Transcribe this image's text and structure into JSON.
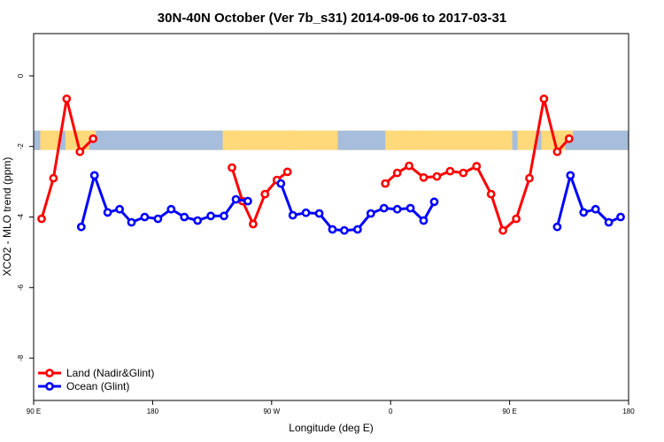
{
  "chart_data": {
    "type": "line",
    "title": "30N-40N October (Ver 7b_s31)   2014-09-06 to 2017-03-31",
    "xlabel": "Longitude (deg E)",
    "ylabel": "XCO2 - MLO trend (ppm)",
    "xlim": [
      90,
      540
    ],
    "ylim": [
      -9.2,
      1.2
    ],
    "x_ticks": [
      {
        "value": 90,
        "label": "90 E"
      },
      {
        "value": 180,
        "label": "180"
      },
      {
        "value": 270,
        "label": "90 W"
      },
      {
        "value": 360,
        "label": "0"
      },
      {
        "value": 450,
        "label": "90 E"
      },
      {
        "value": 540,
        "label": "180"
      }
    ],
    "y_ticks": [
      {
        "value": 0,
        "label": "0"
      },
      {
        "value": -2,
        "label": "-2"
      },
      {
        "value": -4,
        "label": "-4"
      },
      {
        "value": -6,
        "label": "-6"
      },
      {
        "value": -8,
        "label": "-8"
      }
    ],
    "land_mask_band": {
      "y_range": [
        -2.1,
        -1.55
      ],
      "land_color": "#FFD97A",
      "ocean_color": "#A6BDDB"
    },
    "series": [
      {
        "name": "Land (Nadir&Glint)",
        "color": "#FF0000",
        "segments": [
          [
            [
              96,
              -4.05
            ],
            [
              105,
              -2.9
            ],
            [
              115,
              -0.65
            ],
            [
              125,
              -2.15
            ],
            [
              135,
              -1.78
            ]
          ],
          [
            [
              240,
              -2.6
            ],
            [
              248,
              -3.55
            ],
            [
              256,
              -4.2
            ],
            [
              265,
              -3.35
            ],
            [
              274,
              -2.95
            ],
            [
              282,
              -2.72
            ]
          ],
          [
            [
              356,
              -3.05
            ],
            [
              365,
              -2.75
            ],
            [
              374,
              -2.55
            ],
            [
              385,
              -2.88
            ],
            [
              395,
              -2.85
            ],
            [
              405,
              -2.7
            ],
            [
              415,
              -2.75
            ],
            [
              425,
              -2.56
            ],
            [
              436,
              -3.35
            ],
            [
              445,
              -4.38
            ],
            [
              455,
              -4.05
            ],
            [
              465,
              -2.9
            ],
            [
              476,
              -0.65
            ],
            [
              486,
              -2.15
            ],
            [
              495,
              -1.78
            ]
          ]
        ]
      },
      {
        "name": "Ocean (Glint)",
        "color": "#0000FF",
        "segments": [
          [
            [
              126,
              -4.28
            ],
            [
              136,
              -2.82
            ],
            [
              146,
              -3.87
            ],
            [
              155,
              -3.78
            ],
            [
              164,
              -4.15
            ],
            [
              174,
              -4.0
            ],
            [
              184,
              -4.05
            ],
            [
              194,
              -3.78
            ],
            [
              204,
              -4.0
            ],
            [
              214,
              -4.1
            ],
            [
              224,
              -3.97
            ],
            [
              234,
              -3.97
            ],
            [
              243,
              -3.5
            ],
            [
              252,
              -3.55
            ]
          ],
          [
            [
              277,
              -3.05
            ],
            [
              286,
              -3.95
            ],
            [
              296,
              -3.88
            ],
            [
              306,
              -3.9
            ],
            [
              316,
              -4.35
            ],
            [
              325,
              -4.38
            ],
            [
              335,
              -4.35
            ],
            [
              345,
              -3.9
            ],
            [
              355,
              -3.75
            ],
            [
              365,
              -3.78
            ],
            [
              375,
              -3.75
            ],
            [
              385,
              -4.1
            ],
            [
              393,
              -3.57
            ]
          ],
          [
            [
              486,
              -4.28
            ],
            [
              496,
              -2.82
            ],
            [
              506,
              -3.87
            ],
            [
              515,
              -3.78
            ],
            [
              525,
              -4.15
            ],
            [
              534,
              -4.0
            ]
          ]
        ]
      }
    ],
    "legend": {
      "position": "bottom-left",
      "entries": [
        "Land (Nadir&Glint)",
        "Ocean (Glint)"
      ]
    }
  }
}
